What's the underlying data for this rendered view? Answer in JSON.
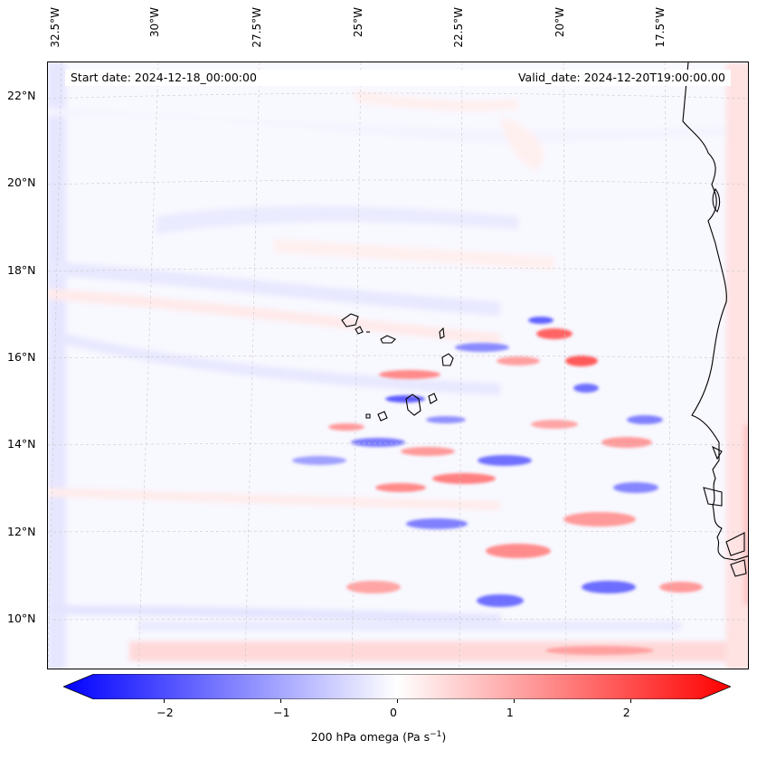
{
  "map": {
    "start_date": "Start date: 2024-12-18_00:00:00",
    "valid_date": "Valid_date: 2024-12-20T19:00:00.00",
    "longitude_labels": [
      "32.5°W",
      "30°W",
      "27.5°W",
      "25°W",
      "22.5°W",
      "20°W",
      "17.5°W"
    ],
    "latitude_labels": [
      "22°N",
      "20°N",
      "18°N",
      "16°N",
      "14°N",
      "12°N",
      "10°N"
    ],
    "features": [
      "Cabo Verde islands",
      "West African coastline"
    ]
  },
  "colorbar": {
    "ticks": [
      "−2",
      "−1",
      "0",
      "1",
      "2"
    ],
    "min": -2.6,
    "max": 2.6,
    "label_prefix": "200 hPa omega (Pa s",
    "label_exp": "−1",
    "label_suffix": ")",
    "colormap": "bwr",
    "low_color": "#0000ff",
    "mid_color": "#ffffff",
    "high_color": "#ff0000"
  }
}
